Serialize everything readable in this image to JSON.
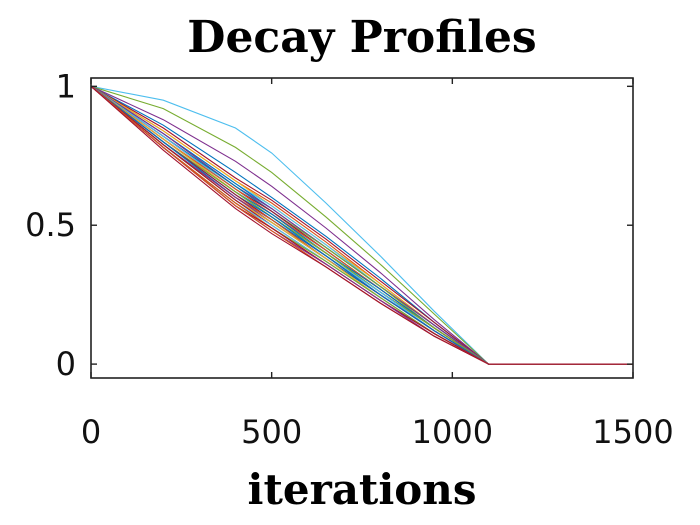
{
  "chart_data": {
    "type": "line",
    "title": "Decay Profiles",
    "xlabel": "iterations",
    "ylabel": "",
    "xlim": [
      0,
      1500
    ],
    "ylim": [
      -0.05,
      1.03
    ],
    "xticks": [
      0,
      500,
      1000,
      1500
    ],
    "xtick_labels": [
      "0",
      "500",
      "1000",
      "1500"
    ],
    "yticks": [
      0,
      0.5,
      1
    ],
    "ytick_labels": [
      "0",
      "0.5",
      "1"
    ],
    "grid": false,
    "legend": "none",
    "series": [
      {
        "color": "#4dbeee",
        "x": [
          0,
          200,
          400,
          500,
          650,
          800,
          950,
          1100,
          1500
        ],
        "y": [
          1,
          0.95,
          0.85,
          0.76,
          0.58,
          0.39,
          0.19,
          0,
          0
        ]
      },
      {
        "color": "#77ac30",
        "x": [
          0,
          200,
          400,
          500,
          650,
          800,
          950,
          1100,
          1500
        ],
        "y": [
          1,
          0.92,
          0.78,
          0.69,
          0.53,
          0.36,
          0.18,
          0,
          0
        ]
      },
      {
        "color": "#7e2f8e",
        "x": [
          0,
          200,
          400,
          500,
          650,
          800,
          950,
          1100,
          1500
        ],
        "y": [
          1,
          0.88,
          0.73,
          0.64,
          0.49,
          0.33,
          0.16,
          0,
          0
        ]
      },
      {
        "color": "#0072bd",
        "x": [
          0,
          200,
          400,
          500,
          650,
          800,
          950,
          1100,
          1500
        ],
        "y": [
          1,
          0.86,
          0.69,
          0.6,
          0.46,
          0.31,
          0.15,
          0,
          0
        ]
      },
      {
        "color": "#a2142f",
        "x": [
          0,
          200,
          400,
          500,
          650,
          800,
          950,
          1100,
          1500
        ],
        "y": [
          1,
          0.85,
          0.67,
          0.59,
          0.45,
          0.3,
          0.15,
          0,
          0
        ]
      },
      {
        "color": "#d95319",
        "x": [
          0,
          200,
          400,
          500,
          650,
          800,
          950,
          1100,
          1500
        ],
        "y": [
          1,
          0.84,
          0.66,
          0.58,
          0.44,
          0.29,
          0.14,
          0,
          0
        ]
      },
      {
        "color": "#edb120",
        "x": [
          0,
          200,
          400,
          500,
          650,
          800,
          950,
          1100,
          1500
        ],
        "y": [
          1,
          0.84,
          0.66,
          0.57,
          0.43,
          0.29,
          0.14,
          0,
          0
        ]
      },
      {
        "color": "#4dbeee",
        "x": [
          0,
          200,
          400,
          500,
          650,
          800,
          950,
          1100,
          1500
        ],
        "y": [
          1,
          0.83,
          0.65,
          0.57,
          0.43,
          0.28,
          0.14,
          0,
          0
        ]
      },
      {
        "color": "#0072bd",
        "x": [
          0,
          200,
          400,
          500,
          650,
          800,
          950,
          1100,
          1500
        ],
        "y": [
          1,
          0.83,
          0.65,
          0.56,
          0.42,
          0.28,
          0.14,
          0,
          0
        ]
      },
      {
        "color": "#7e2f8e",
        "x": [
          0,
          200,
          400,
          500,
          650,
          800,
          950,
          1100,
          1500
        ],
        "y": [
          1,
          0.83,
          0.64,
          0.56,
          0.42,
          0.28,
          0.14,
          0,
          0
        ]
      },
      {
        "color": "#77ac30",
        "x": [
          0,
          200,
          400,
          500,
          650,
          800,
          950,
          1100,
          1500
        ],
        "y": [
          1,
          0.82,
          0.64,
          0.55,
          0.42,
          0.28,
          0.13,
          0,
          0
        ]
      },
      {
        "color": "#0072bd",
        "x": [
          0,
          200,
          400,
          500,
          650,
          800,
          950,
          1100,
          1500
        ],
        "y": [
          1,
          0.82,
          0.64,
          0.55,
          0.41,
          0.27,
          0.13,
          0,
          0
        ]
      },
      {
        "color": "#a2142f",
        "x": [
          0,
          200,
          400,
          500,
          650,
          800,
          950,
          1100,
          1500
        ],
        "y": [
          1,
          0.82,
          0.63,
          0.55,
          0.41,
          0.27,
          0.13,
          0,
          0
        ]
      },
      {
        "color": "#4dbeee",
        "x": [
          0,
          200,
          400,
          500,
          650,
          800,
          950,
          1100,
          1500
        ],
        "y": [
          1,
          0.82,
          0.63,
          0.54,
          0.41,
          0.27,
          0.13,
          0,
          0
        ]
      },
      {
        "color": "#d95319",
        "x": [
          0,
          200,
          400,
          500,
          650,
          800,
          950,
          1100,
          1500
        ],
        "y": [
          1,
          0.81,
          0.63,
          0.54,
          0.41,
          0.27,
          0.13,
          0,
          0
        ]
      },
      {
        "color": "#0072bd",
        "x": [
          0,
          200,
          400,
          500,
          650,
          800,
          950,
          1100,
          1500
        ],
        "y": [
          1,
          0.81,
          0.62,
          0.54,
          0.4,
          0.27,
          0.13,
          0,
          0
        ]
      },
      {
        "color": "#7e2f8e",
        "x": [
          0,
          200,
          400,
          500,
          650,
          800,
          950,
          1100,
          1500
        ],
        "y": [
          1,
          0.81,
          0.62,
          0.53,
          0.4,
          0.26,
          0.13,
          0,
          0
        ]
      },
      {
        "color": "#edb120",
        "x": [
          0,
          200,
          400,
          500,
          650,
          800,
          950,
          1100,
          1500
        ],
        "y": [
          1,
          0.81,
          0.62,
          0.53,
          0.4,
          0.26,
          0.13,
          0,
          0
        ]
      },
      {
        "color": "#77ac30",
        "x": [
          0,
          200,
          400,
          500,
          650,
          800,
          950,
          1100,
          1500
        ],
        "y": [
          1,
          0.8,
          0.62,
          0.53,
          0.4,
          0.26,
          0.13,
          0,
          0
        ]
      },
      {
        "color": "#0072bd",
        "x": [
          0,
          200,
          400,
          500,
          650,
          800,
          950,
          1100,
          1500
        ],
        "y": [
          1,
          0.8,
          0.61,
          0.53,
          0.39,
          0.26,
          0.12,
          0,
          0
        ]
      },
      {
        "color": "#4dbeee",
        "x": [
          0,
          200,
          400,
          500,
          650,
          800,
          950,
          1100,
          1500
        ],
        "y": [
          1,
          0.8,
          0.61,
          0.52,
          0.39,
          0.26,
          0.12,
          0,
          0
        ]
      },
      {
        "color": "#a2142f",
        "x": [
          0,
          200,
          400,
          500,
          650,
          800,
          950,
          1100,
          1500
        ],
        "y": [
          1,
          0.8,
          0.61,
          0.52,
          0.39,
          0.25,
          0.12,
          0,
          0
        ]
      },
      {
        "color": "#0072bd",
        "x": [
          0,
          200,
          400,
          500,
          650,
          800,
          950,
          1100,
          1500
        ],
        "y": [
          1,
          0.8,
          0.6,
          0.52,
          0.39,
          0.25,
          0.12,
          0,
          0
        ]
      },
      {
        "color": "#d95319",
        "x": [
          0,
          200,
          400,
          500,
          650,
          800,
          950,
          1100,
          1500
        ],
        "y": [
          1,
          0.79,
          0.6,
          0.52,
          0.38,
          0.25,
          0.12,
          0,
          0
        ]
      },
      {
        "color": "#7e2f8e",
        "x": [
          0,
          200,
          400,
          500,
          650,
          800,
          950,
          1100,
          1500
        ],
        "y": [
          1,
          0.79,
          0.6,
          0.51,
          0.38,
          0.25,
          0.12,
          0,
          0
        ]
      },
      {
        "color": "#0072bd",
        "x": [
          0,
          200,
          400,
          500,
          650,
          800,
          950,
          1100,
          1500
        ],
        "y": [
          1,
          0.79,
          0.59,
          0.51,
          0.38,
          0.25,
          0.12,
          0,
          0
        ]
      },
      {
        "color": "#edb120",
        "x": [
          0,
          200,
          400,
          500,
          650,
          800,
          950,
          1100,
          1500
        ],
        "y": [
          1,
          0.79,
          0.59,
          0.51,
          0.38,
          0.24,
          0.11,
          0,
          0
        ]
      },
      {
        "color": "#a2142f",
        "x": [
          0,
          200,
          400,
          500,
          650,
          800,
          950,
          1100,
          1500
        ],
        "y": [
          1,
          0.79,
          0.59,
          0.5,
          0.37,
          0.24,
          0.11,
          0,
          0
        ]
      },
      {
        "color": "#4dbeee",
        "x": [
          0,
          200,
          400,
          500,
          650,
          800,
          950,
          1100,
          1500
        ],
        "y": [
          1,
          0.78,
          0.58,
          0.5,
          0.37,
          0.24,
          0.11,
          0,
          0
        ]
      },
      {
        "color": "#77ac30",
        "x": [
          0,
          200,
          400,
          500,
          650,
          800,
          950,
          1100,
          1500
        ],
        "y": [
          1,
          0.78,
          0.58,
          0.49,
          0.37,
          0.24,
          0.11,
          0,
          0
        ]
      },
      {
        "color": "#d95319",
        "x": [
          0,
          200,
          400,
          500,
          650,
          800,
          950,
          1100,
          1500
        ],
        "y": [
          1,
          0.78,
          0.58,
          0.49,
          0.36,
          0.23,
          0.11,
          0,
          0
        ]
      },
      {
        "color": "#a2142f",
        "x": [
          0,
          200,
          400,
          500,
          650,
          800,
          950,
          1100,
          1500
        ],
        "y": [
          1,
          0.78,
          0.57,
          0.49,
          0.36,
          0.23,
          0.11,
          0,
          0
        ]
      },
      {
        "color": "#7e2f8e",
        "x": [
          0,
          200,
          400,
          500,
          650,
          800,
          950,
          1100,
          1500
        ],
        "y": [
          1,
          0.78,
          0.57,
          0.48,
          0.36,
          0.23,
          0.1,
          0,
          0
        ]
      },
      {
        "color": "#d95319",
        "x": [
          0,
          200,
          400,
          500,
          650,
          800,
          950,
          1100,
          1500
        ],
        "y": [
          1,
          0.78,
          0.57,
          0.48,
          0.35,
          0.22,
          0.1,
          0,
          0
        ]
      },
      {
        "color": "#a2142f",
        "x": [
          0,
          200,
          400,
          500,
          650,
          800,
          950,
          1100,
          1500
        ],
        "y": [
          1,
          0.77,
          0.56,
          0.47,
          0.35,
          0.22,
          0.1,
          0,
          0
        ]
      }
    ]
  }
}
